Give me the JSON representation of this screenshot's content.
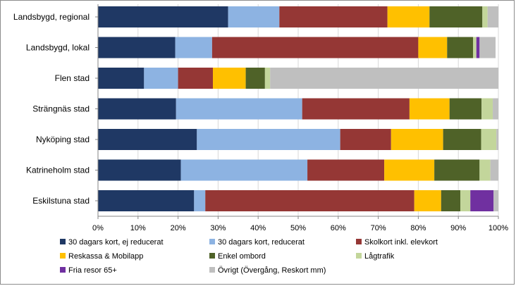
{
  "chart_data": {
    "type": "bar",
    "orientation": "horizontal",
    "stacked": true,
    "title": "",
    "xlabel": "",
    "ylabel": "",
    "xlim": [
      0,
      100
    ],
    "ticks": [
      "0%",
      "10%",
      "20%",
      "30%",
      "40%",
      "50%",
      "60%",
      "70%",
      "80%",
      "90%",
      "100%"
    ],
    "grid": true,
    "legend_position": "bottom",
    "categories": [
      "Landsbygd, regional",
      "Landsbygd, lokal",
      "Flen stad",
      "Strängnäs stad",
      "Nyköping stad",
      "Katrineholm stad",
      "Eskilstuna stad"
    ],
    "series": [
      {
        "name": "30 dagars kort, ej reducerat",
        "color": "#1f3864",
        "values": [
          32.5,
          19.3,
          11.5,
          19.5,
          24.7,
          20.7,
          24.0
        ]
      },
      {
        "name": "30 dagars kort, reducerat",
        "color": "#8db3e2",
        "values": [
          12.8,
          9.2,
          8.5,
          31.5,
          35.8,
          31.6,
          2.8
        ]
      },
      {
        "name": "Skolkort inkl. elevkort",
        "color": "#953735",
        "values": [
          27.0,
          51.5,
          8.7,
          26.8,
          12.7,
          19.2,
          52.2
        ]
      },
      {
        "name": "Reskassa & Mobilapp",
        "color": "#ffc000",
        "values": [
          10.5,
          7.2,
          8.2,
          10.0,
          13.0,
          12.5,
          6.7
        ]
      },
      {
        "name": "Enkel ombord",
        "color": "#4f6228",
        "values": [
          13.2,
          6.5,
          4.8,
          8.0,
          9.5,
          11.3,
          4.8
        ]
      },
      {
        "name": "Lågtrafik",
        "color": "#c3d69b",
        "values": [
          1.3,
          0.8,
          1.3,
          2.8,
          3.8,
          2.7,
          2.5
        ]
      },
      {
        "name": "Fria resor 65+",
        "color": "#7030a0",
        "values": [
          0.0,
          0.8,
          0.0,
          0.0,
          0.0,
          0.0,
          5.8
        ]
      },
      {
        "name": "Övrigt (Övergång, Reskort mm)",
        "color": "#bfbfbf",
        "values": [
          2.7,
          4.0,
          57.0,
          1.4,
          0.5,
          2.0,
          1.2
        ]
      }
    ]
  }
}
